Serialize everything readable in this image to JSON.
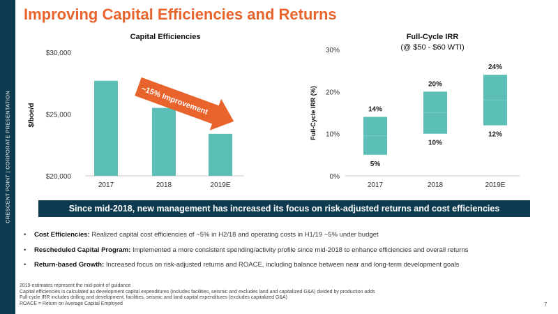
{
  "sidebar": {
    "text": "CRESCENT POINT   |   CORPORATE PRESENTATION"
  },
  "title": "Improving Capital Efficiencies and Returns",
  "colors": {
    "bar": "#5cbfb7",
    "accent": "#e8642c",
    "navy": "#0e3a4f"
  },
  "chart_data": [
    {
      "type": "bar",
      "title": "Capital Efficiencies",
      "ylabel": "$/boe/d",
      "categories": [
        "2017",
        "2018",
        "2019E"
      ],
      "values": [
        27700,
        25500,
        23400
      ],
      "ylim": [
        20000,
        30000
      ],
      "yticks": [
        20000,
        25000,
        30000
      ],
      "ytick_labels": [
        "$20,000",
        "$25,000",
        "$30,000"
      ],
      "annotation": "~15% Improvement"
    },
    {
      "type": "bar",
      "title": "Full-Cycle IRR",
      "subtitle": "(@ $50 - $60 WTI)",
      "ylabel": "Full-Cycle IRR (%)",
      "categories": [
        "2017",
        "2018",
        "2019E"
      ],
      "low": [
        5,
        10,
        12
      ],
      "high": [
        14,
        20,
        24
      ],
      "low_labels": [
        "5%",
        "10%",
        "12%"
      ],
      "high_labels": [
        "14%",
        "20%",
        "24%"
      ],
      "ylim": [
        0,
        30
      ],
      "yticks": [
        0,
        10,
        20,
        30
      ],
      "ytick_labels": [
        "0%",
        "10%",
        "20%",
        "30%"
      ]
    }
  ],
  "banner": "Since mid-2018, new management has increased its focus on risk-adjusted returns and cost efficiencies",
  "bullets": [
    {
      "label": "Cost Efficiencies:",
      "text": " Realized capital cost efficiencies of ~5% in H2/18 and operating costs in H1/19 ~5% under budget"
    },
    {
      "label": "Rescheduled Capital Program:",
      "text": " Implemented a more consistent spending/activity profile since mid-2018 to enhance efficiencies and overall returns"
    },
    {
      "label": "Return-based Growth:",
      "text": " Increased focus on risk-adjusted returns and ROACE, including balance between near and long-term development goals"
    }
  ],
  "footnotes": [
    "2019 estimates represent the mid-point of guidance",
    "Capital efficiencies is calculated as development capital expenditures (includes facilities, seismic and excludes land and capitalized G&A) divided by production adds",
    "Full-cycle IRR includes drilling and development, facilities, seismic and land capital expenditures (excludes capitalized G&A)",
    "ROACE = Return on Average Capital Employed"
  ],
  "page_number": "7"
}
